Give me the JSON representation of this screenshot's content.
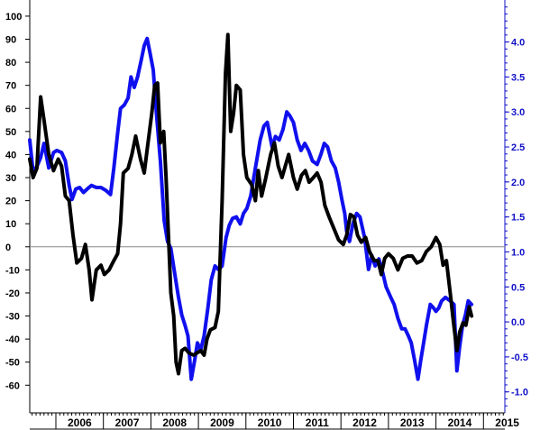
{
  "chart_data": {
    "type": "line",
    "title": "",
    "xlabel": "",
    "ylabel_left": "",
    "ylabel_right": "",
    "x_range": [
      2005.45,
      2015.45
    ],
    "x_tick_labels": [
      "2006",
      "2007",
      "2008",
      "2009",
      "2010",
      "2011",
      "2012",
      "2013",
      "2014",
      "2015"
    ],
    "y_left": {
      "range": [
        -72,
        107
      ],
      "ticks": [
        100,
        90,
        80,
        70,
        60,
        50,
        40,
        30,
        20,
        10,
        0,
        -10,
        -20,
        -30,
        -40,
        -50,
        -60
      ]
    },
    "y_right": {
      "range": [
        -1.3,
        4.6
      ],
      "ticks": [
        "4.0",
        "3.5",
        "3.0",
        "2.5",
        "2.0",
        "1.5",
        "1.0",
        "0.5",
        "0.0",
        "-0.5",
        "-1.0"
      ]
    },
    "reference_line": {
      "axis": "left",
      "value": 0
    },
    "grid": false,
    "colors": {
      "series_left": "#000000",
      "series_right": "#1010ee",
      "right_axis": "#1010c8",
      "reference_line": "#888888"
    },
    "series": [
      {
        "axis": "left",
        "points": [
          [
            2005.45,
            38
          ],
          [
            2005.52,
            30
          ],
          [
            2005.6,
            34
          ],
          [
            2005.68,
            65
          ],
          [
            2005.75,
            55
          ],
          [
            2005.85,
            40
          ],
          [
            2005.95,
            33
          ],
          [
            2006.05,
            38
          ],
          [
            2006.12,
            35
          ],
          [
            2006.2,
            22
          ],
          [
            2006.28,
            20
          ],
          [
            2006.36,
            5
          ],
          [
            2006.44,
            -7
          ],
          [
            2006.54,
            -5
          ],
          [
            2006.62,
            1
          ],
          [
            2006.7,
            -10
          ],
          [
            2006.76,
            -23
          ],
          [
            2006.85,
            -10
          ],
          [
            2006.95,
            -8
          ],
          [
            2007.02,
            -12
          ],
          [
            2007.12,
            -10
          ],
          [
            2007.22,
            -6
          ],
          [
            2007.3,
            -3
          ],
          [
            2007.36,
            10
          ],
          [
            2007.42,
            32
          ],
          [
            2007.52,
            34
          ],
          [
            2007.6,
            40
          ],
          [
            2007.68,
            48
          ],
          [
            2007.78,
            38
          ],
          [
            2007.86,
            32
          ],
          [
            2007.92,
            42
          ],
          [
            2008.02,
            58
          ],
          [
            2008.08,
            70
          ],
          [
            2008.14,
            71
          ],
          [
            2008.2,
            45
          ],
          [
            2008.27,
            50
          ],
          [
            2008.32,
            30
          ],
          [
            2008.42,
            -20
          ],
          [
            2008.48,
            -30
          ],
          [
            2008.53,
            -50
          ],
          [
            2008.58,
            -55
          ],
          [
            2008.65,
            -45
          ],
          [
            2008.72,
            -44
          ],
          [
            2008.8,
            -46
          ],
          [
            2008.9,
            -47
          ],
          [
            2008.97,
            -46
          ],
          [
            2009.05,
            -45
          ],
          [
            2009.12,
            -47
          ],
          [
            2009.18,
            -40
          ],
          [
            2009.25,
            -36
          ],
          [
            2009.35,
            -35
          ],
          [
            2009.42,
            -28
          ],
          [
            2009.5,
            20
          ],
          [
            2009.57,
            75
          ],
          [
            2009.62,
            92
          ],
          [
            2009.68,
            50
          ],
          [
            2009.74,
            58
          ],
          [
            2009.8,
            70
          ],
          [
            2009.88,
            68
          ],
          [
            2009.95,
            40
          ],
          [
            2010.02,
            30
          ],
          [
            2010.12,
            27
          ],
          [
            2010.2,
            20
          ],
          [
            2010.26,
            33
          ],
          [
            2010.33,
            22
          ],
          [
            2010.42,
            30
          ],
          [
            2010.52,
            40
          ],
          [
            2010.6,
            45
          ],
          [
            2010.68,
            35
          ],
          [
            2010.76,
            30
          ],
          [
            2010.83,
            35
          ],
          [
            2010.9,
            40
          ],
          [
            2011.0,
            30
          ],
          [
            2011.08,
            25
          ],
          [
            2011.17,
            31
          ],
          [
            2011.25,
            33
          ],
          [
            2011.33,
            28
          ],
          [
            2011.42,
            30
          ],
          [
            2011.5,
            32
          ],
          [
            2011.58,
            28
          ],
          [
            2011.66,
            18
          ],
          [
            2011.75,
            13
          ],
          [
            2011.85,
            8
          ],
          [
            2011.95,
            3
          ],
          [
            2012.05,
            1
          ],
          [
            2012.12,
            5
          ],
          [
            2012.2,
            14
          ],
          [
            2012.27,
            13
          ],
          [
            2012.35,
            5
          ],
          [
            2012.43,
            2
          ],
          [
            2012.52,
            4
          ],
          [
            2012.6,
            -2
          ],
          [
            2012.7,
            -6
          ],
          [
            2012.78,
            -6
          ],
          [
            2012.85,
            -12
          ],
          [
            2012.92,
            -5
          ],
          [
            2013.0,
            -3
          ],
          [
            2013.1,
            -5
          ],
          [
            2013.2,
            -10
          ],
          [
            2013.3,
            -5
          ],
          [
            2013.4,
            -4
          ],
          [
            2013.5,
            -4
          ],
          [
            2013.6,
            -7
          ],
          [
            2013.7,
            -6
          ],
          [
            2013.8,
            -2
          ],
          [
            2013.9,
            0
          ],
          [
            2014.0,
            4
          ],
          [
            2014.08,
            1
          ],
          [
            2014.15,
            -8
          ],
          [
            2014.22,
            -6
          ],
          [
            2014.3,
            -20
          ],
          [
            2014.37,
            -33
          ],
          [
            2014.44,
            -45
          ],
          [
            2014.5,
            -37
          ],
          [
            2014.57,
            -33
          ],
          [
            2014.63,
            -34
          ],
          [
            2014.7,
            -26
          ],
          [
            2014.75,
            -30
          ]
        ]
      },
      {
        "axis": "right",
        "points": [
          [
            2005.45,
            2.6
          ],
          [
            2005.52,
            2.15
          ],
          [
            2005.6,
            2.22
          ],
          [
            2005.68,
            2.35
          ],
          [
            2005.75,
            2.55
          ],
          [
            2005.85,
            2.2
          ],
          [
            2005.95,
            2.42
          ],
          [
            2006.02,
            2.45
          ],
          [
            2006.12,
            2.42
          ],
          [
            2006.2,
            2.3
          ],
          [
            2006.28,
            1.95
          ],
          [
            2006.34,
            1.75
          ],
          [
            2006.42,
            1.9
          ],
          [
            2006.5,
            1.92
          ],
          [
            2006.58,
            1.85
          ],
          [
            2006.66,
            1.9
          ],
          [
            2006.75,
            1.95
          ],
          [
            2006.85,
            1.92
          ],
          [
            2006.95,
            1.92
          ],
          [
            2007.05,
            1.88
          ],
          [
            2007.15,
            1.82
          ],
          [
            2007.22,
            2.2
          ],
          [
            2007.3,
            2.7
          ],
          [
            2007.36,
            3.05
          ],
          [
            2007.44,
            3.1
          ],
          [
            2007.52,
            3.2
          ],
          [
            2007.58,
            3.5
          ],
          [
            2007.65,
            3.35
          ],
          [
            2007.72,
            3.5
          ],
          [
            2007.8,
            3.75
          ],
          [
            2007.86,
            3.95
          ],
          [
            2007.92,
            4.05
          ],
          [
            2007.98,
            3.85
          ],
          [
            2008.05,
            3.6
          ],
          [
            2008.12,
            2.95
          ],
          [
            2008.2,
            2.3
          ],
          [
            2008.28,
            1.45
          ],
          [
            2008.35,
            1.15
          ],
          [
            2008.42,
            1.05
          ],
          [
            2008.5,
            0.7
          ],
          [
            2008.58,
            0.35
          ],
          [
            2008.65,
            0.1
          ],
          [
            2008.72,
            -0.05
          ],
          [
            2008.78,
            -0.2
          ],
          [
            2008.85,
            -0.82
          ],
          [
            2008.92,
            -0.55
          ],
          [
            2008.98,
            -0.3
          ],
          [
            2009.05,
            -0.4
          ],
          [
            2009.12,
            -0.2
          ],
          [
            2009.2,
            0.2
          ],
          [
            2009.27,
            0.6
          ],
          [
            2009.35,
            0.8
          ],
          [
            2009.42,
            0.75
          ],
          [
            2009.5,
            0.8
          ],
          [
            2009.58,
            1.2
          ],
          [
            2009.65,
            1.38
          ],
          [
            2009.72,
            1.48
          ],
          [
            2009.8,
            1.5
          ],
          [
            2009.88,
            1.4
          ],
          [
            2009.95,
            1.55
          ],
          [
            2010.02,
            1.62
          ],
          [
            2010.1,
            1.8
          ],
          [
            2010.2,
            2.2
          ],
          [
            2010.3,
            2.6
          ],
          [
            2010.38,
            2.8
          ],
          [
            2010.45,
            2.85
          ],
          [
            2010.55,
            2.5
          ],
          [
            2010.62,
            2.65
          ],
          [
            2010.7,
            2.6
          ],
          [
            2010.78,
            2.75
          ],
          [
            2010.86,
            3.0
          ],
          [
            2010.92,
            2.95
          ],
          [
            2011.0,
            2.85
          ],
          [
            2011.08,
            2.6
          ],
          [
            2011.16,
            2.45
          ],
          [
            2011.24,
            2.55
          ],
          [
            2011.32,
            2.45
          ],
          [
            2011.4,
            2.3
          ],
          [
            2011.5,
            2.25
          ],
          [
            2011.58,
            2.4
          ],
          [
            2011.65,
            2.55
          ],
          [
            2011.72,
            2.5
          ],
          [
            2011.8,
            2.3
          ],
          [
            2011.88,
            2.2
          ],
          [
            2011.95,
            2.0
          ],
          [
            2012.02,
            1.75
          ],
          [
            2012.08,
            1.55
          ],
          [
            2012.12,
            1.3
          ],
          [
            2012.18,
            1.15
          ],
          [
            2012.25,
            1.4
          ],
          [
            2012.33,
            1.55
          ],
          [
            2012.4,
            1.5
          ],
          [
            2012.5,
            1.2
          ],
          [
            2012.58,
            0.75
          ],
          [
            2012.65,
            0.95
          ],
          [
            2012.72,
            0.8
          ],
          [
            2012.8,
            0.9
          ],
          [
            2012.88,
            0.7
          ],
          [
            2012.95,
            0.5
          ],
          [
            2013.05,
            0.35
          ],
          [
            2013.12,
            0.25
          ],
          [
            2013.2,
            0.05
          ],
          [
            2013.28,
            -0.1
          ],
          [
            2013.35,
            -0.1
          ],
          [
            2013.42,
            -0.2
          ],
          [
            2013.48,
            -0.3
          ],
          [
            2013.55,
            -0.55
          ],
          [
            2013.62,
            -0.82
          ],
          [
            2013.68,
            -0.55
          ],
          [
            2013.74,
            -0.3
          ],
          [
            2013.8,
            -0.05
          ],
          [
            2013.88,
            0.25
          ],
          [
            2013.95,
            0.2
          ],
          [
            2014.0,
            0.15
          ],
          [
            2014.06,
            0.2
          ],
          [
            2014.12,
            0.3
          ],
          [
            2014.2,
            0.35
          ],
          [
            2014.3,
            0.3
          ],
          [
            2014.38,
            0.25
          ],
          [
            2014.44,
            -0.7
          ],
          [
            2014.5,
            -0.35
          ],
          [
            2014.56,
            -0.05
          ],
          [
            2014.62,
            0.1
          ],
          [
            2014.68,
            0.3
          ],
          [
            2014.75,
            0.25
          ]
        ]
      }
    ]
  }
}
